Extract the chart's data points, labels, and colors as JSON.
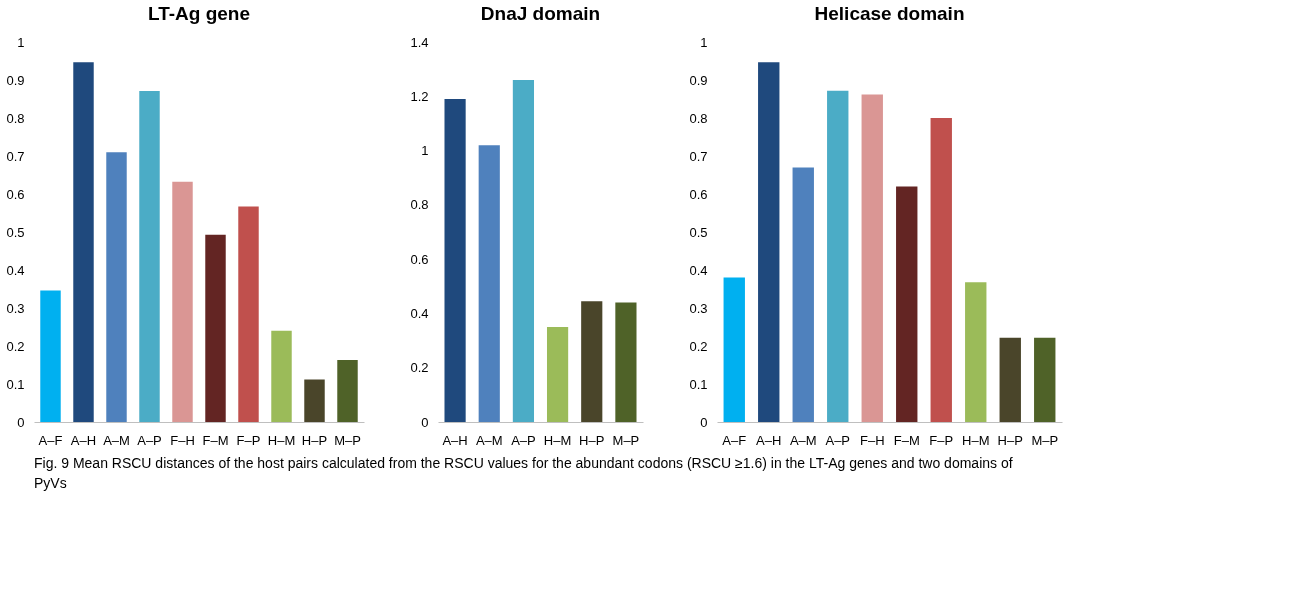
{
  "chart_data": [
    {
      "type": "bar",
      "title": "LT-Ag gene",
      "categories": [
        "A–F",
        "A–H",
        "A–M",
        "A–P",
        "F–H",
        "F–M",
        "F–P",
        "H–M",
        "H–P",
        "M–P"
      ],
      "values": [
        0.346,
        0.947,
        0.71,
        0.871,
        0.632,
        0.493,
        0.567,
        0.24,
        0.112,
        0.163
      ],
      "colors": [
        "#00b0f0",
        "#1f497d",
        "#4f81bd",
        "#4bacc6",
        "#da9694",
        "#632523",
        "#c0504d",
        "#9bbb59",
        "#4a452a",
        "#4f6228"
      ],
      "ylim": [
        0,
        1
      ],
      "yticks": [
        0,
        0.1,
        0.2,
        0.3,
        0.4,
        0.5,
        0.6,
        0.7,
        0.8,
        0.9,
        1
      ],
      "grid": false,
      "annotations": [
        "Fig. 9 Mean RSCU distances of the host pairs calculated from the RSCU values for the abundant codons (RSCU ≥1.6) in the LT-Ag genes and two domains of PyVs"
      ]
    },
    {
      "type": "bar",
      "title": "DnaJ domain",
      "categories": [
        "A–H",
        "A–M",
        "A–P",
        "H–M",
        "H–P",
        "M–P"
      ],
      "values": [
        1.19,
        1.02,
        1.26,
        0.35,
        0.445,
        0.44
      ],
      "colors": [
        "#1f497d",
        "#4f81bd",
        "#4bacc6",
        "#9bbb59",
        "#4a452a",
        "#4f6228"
      ],
      "ylim": [
        0,
        1.4
      ],
      "yticks": [
        0,
        0.2,
        0.4,
        0.6,
        0.8,
        1,
        1.2,
        1.4
      ],
      "grid": false
    },
    {
      "type": "bar",
      "title": "Helicase domain",
      "categories": [
        "A–F",
        "A–H",
        "A–M",
        "A–P",
        "F–H",
        "F–M",
        "F–P",
        "H–M",
        "H–P",
        "M–P"
      ],
      "values": [
        0.38,
        0.947,
        0.67,
        0.872,
        0.862,
        0.62,
        0.8,
        0.368,
        0.222,
        0.222
      ],
      "colors": [
        "#00b0f0",
        "#1f497d",
        "#4f81bd",
        "#4bacc6",
        "#da9694",
        "#632523",
        "#c0504d",
        "#9bbb59",
        "#4a452a",
        "#4f6228"
      ],
      "ylim": [
        0,
        1
      ],
      "yticks": [
        0,
        0.1,
        0.2,
        0.3,
        0.4,
        0.5,
        0.6,
        0.7,
        0.8,
        0.9,
        1
      ],
      "grid": false
    }
  ]
}
